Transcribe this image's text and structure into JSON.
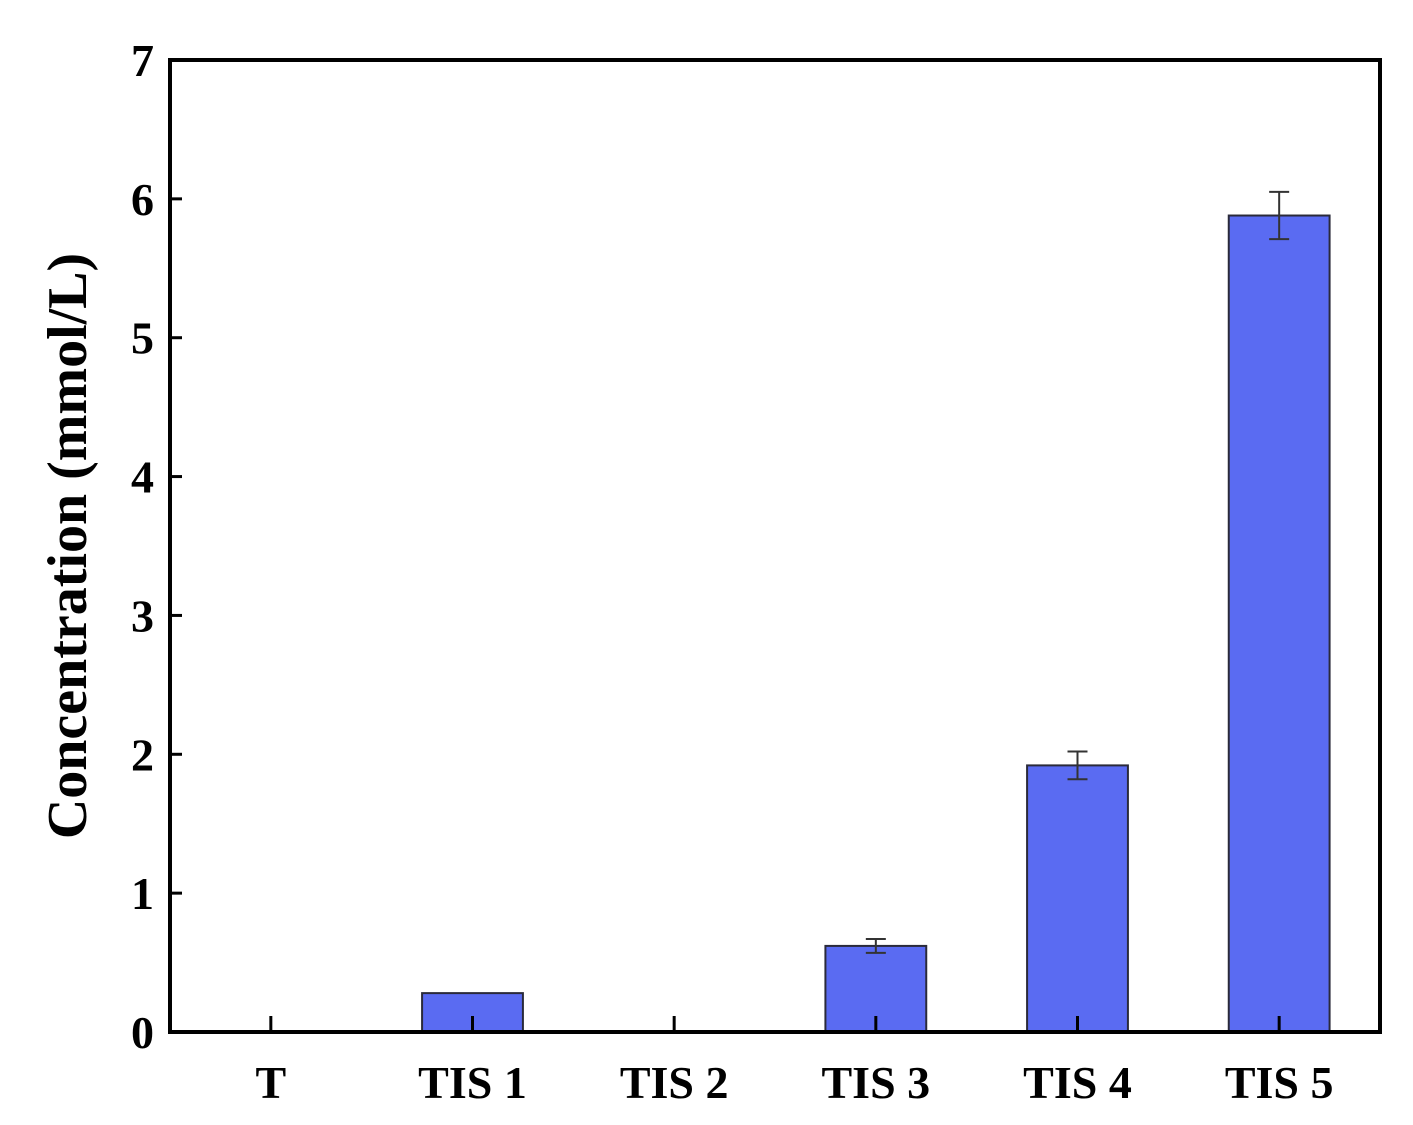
{
  "chart_data": {
    "type": "bar",
    "title": "",
    "xlabel": "",
    "ylabel": "Concentration (mmol/L)",
    "categories": [
      "T",
      "TIS 1",
      "TIS 2",
      "TIS 3",
      "TIS 4",
      "TIS 5"
    ],
    "values": [
      0,
      0.28,
      0,
      0.62,
      1.92,
      5.88
    ],
    "errors": [
      0,
      0,
      0,
      0.05,
      0.1,
      0.17
    ],
    "ylim": [
      0,
      7
    ],
    "yticks": [
      0,
      1,
      2,
      3,
      4,
      5,
      6,
      7
    ],
    "grid": false,
    "bar_color": "#5a6bf2",
    "bar_edge_color": "#2a2a3a"
  }
}
